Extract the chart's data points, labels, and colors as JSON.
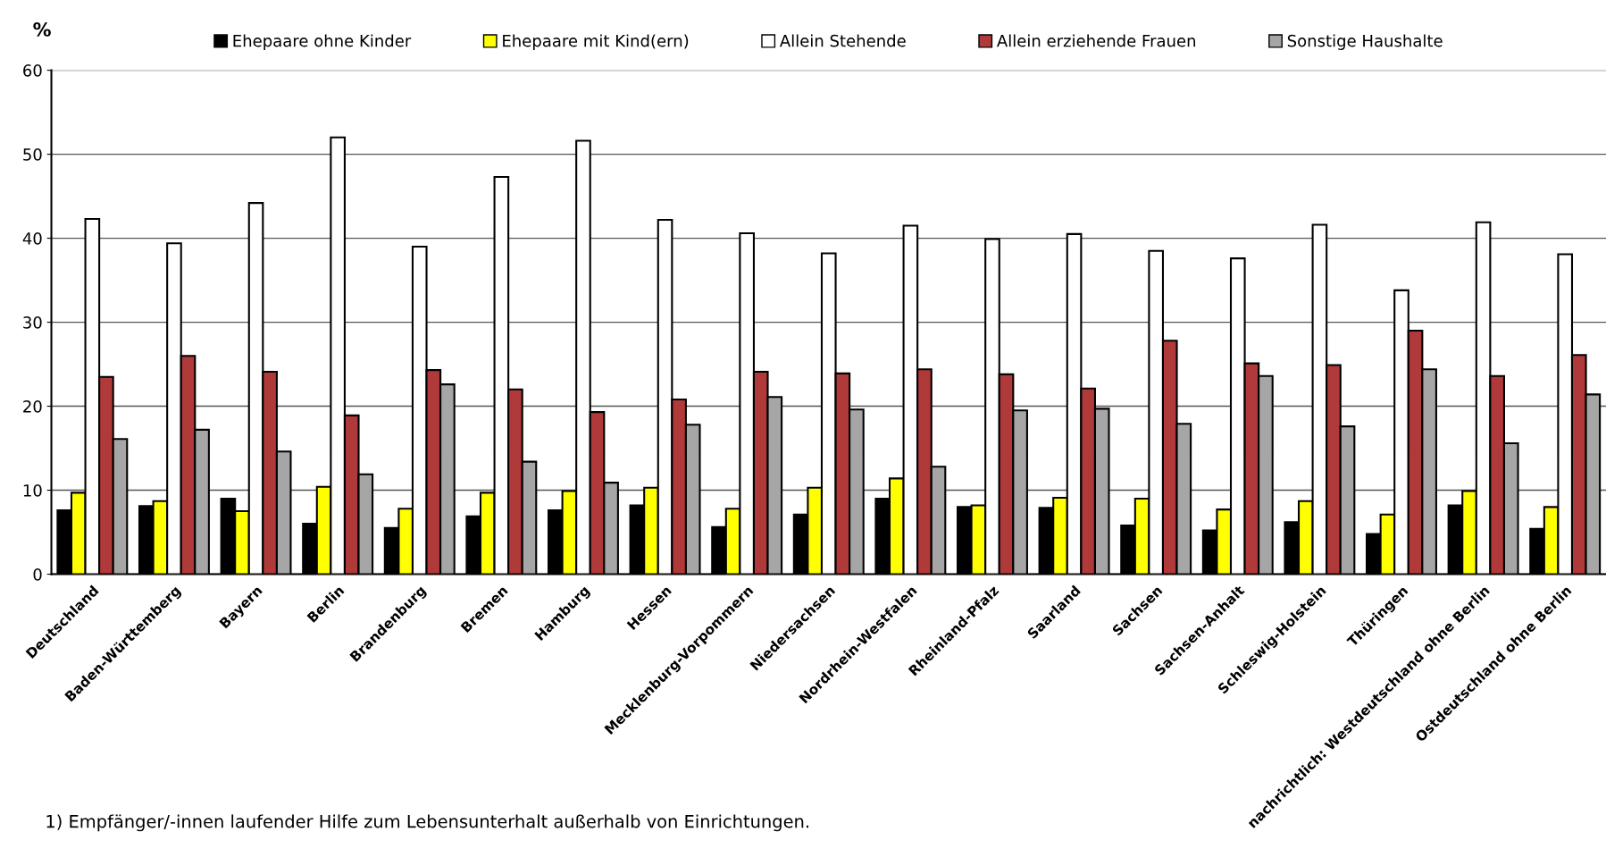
{
  "chart_data": {
    "type": "bar",
    "ylabel": "%",
    "categories": [
      "Deutschland",
      "Baden-Württemberg",
      "Bayern",
      "Berlin",
      "Brandenburg",
      "Bremen",
      "Hamburg",
      "Hessen",
      "Mecklenburg-Vorpommern",
      "Niedersachsen",
      "Nordrhein-Westfalen",
      "Rheinland-Pfalz",
      "Saarland",
      "Sachsen",
      "Sachsen-Anhalt",
      "Schleswig-Holstein",
      "Thüringen",
      "nachrichtlich: Westdeutschland ohne Berlin",
      "Ostdeutschland ohne Berlin"
    ],
    "series": [
      {
        "name": "Ehepaare ohne Kinder",
        "color": "#000000",
        "values": [
          7.6,
          8.1,
          9.0,
          6.0,
          5.5,
          6.9,
          7.6,
          8.2,
          5.6,
          7.1,
          9.0,
          8.0,
          7.9,
          5.8,
          5.2,
          6.2,
          4.8,
          8.2,
          5.4
        ]
      },
      {
        "name": "Ehepaare mit Kind(ern)",
        "color": "#ffff00",
        "values": [
          9.7,
          8.7,
          7.5,
          10.4,
          7.8,
          9.7,
          9.9,
          10.3,
          7.8,
          10.3,
          11.4,
          8.2,
          9.1,
          9.0,
          7.7,
          8.7,
          7.1,
          9.9,
          8.0
        ]
      },
      {
        "name": "Allein Stehende",
        "color": "#ffffff",
        "values": [
          42.3,
          39.4,
          44.2,
          52.0,
          39.0,
          47.3,
          51.6,
          42.2,
          40.6,
          38.2,
          41.5,
          39.9,
          40.5,
          38.5,
          37.6,
          41.6,
          33.8,
          41.9,
          38.1
        ]
      },
      {
        "name": "Allein erziehende Frauen",
        "color": "#b03a3a",
        "values": [
          23.5,
          26.0,
          24.1,
          18.9,
          24.3,
          22.0,
          19.3,
          20.8,
          24.1,
          23.9,
          24.4,
          23.8,
          22.1,
          27.8,
          25.1,
          24.9,
          29.0,
          23.6,
          26.1
        ]
      },
      {
        "name": "Sonstige Haushalte",
        "color": "#a6a6a6",
        "values": [
          16.1,
          17.2,
          14.6,
          11.9,
          22.6,
          13.4,
          10.9,
          17.8,
          21.1,
          19.6,
          12.8,
          19.5,
          19.7,
          17.9,
          23.6,
          17.6,
          24.4,
          15.6,
          21.4
        ]
      }
    ],
    "ylim": [
      0,
      60
    ],
    "yticks": [
      0,
      10,
      20,
      30,
      40,
      50,
      60
    ],
    "grid": "y",
    "legend": "top",
    "annotations": [
      "1) Empfänger/-innen laufender Hilfe zum Lebensunterhalt außerhalb von Einrichtungen."
    ]
  }
}
